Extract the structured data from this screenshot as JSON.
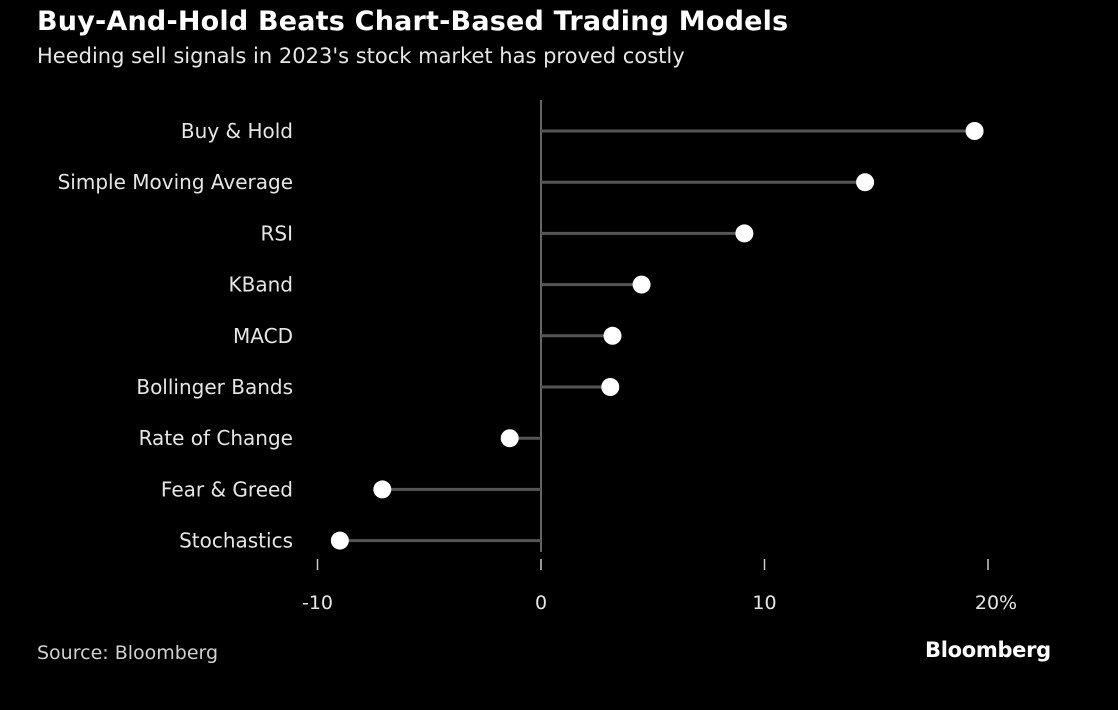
{
  "chart_data": {
    "type": "lollipop",
    "title": "Buy-And-Hold Beats Chart-Based Trading Models",
    "subtitle": "Heeding sell signals in 2023's stock market has proved costly",
    "categories": [
      "Buy & Hold",
      "Simple Moving Average",
      "RSI",
      "KBand",
      "MACD",
      "Bollinger Bands",
      "Rate of Change",
      "Fear & Greed",
      "Stochastics"
    ],
    "values": [
      19.4,
      14.5,
      9.1,
      4.5,
      3.2,
      3.1,
      -1.4,
      -7.1,
      -9.0
    ],
    "xlim": [
      -10,
      20
    ],
    "xticks": [
      -10,
      0,
      10,
      20
    ],
    "xtick_labels": [
      "-10",
      "0",
      "10",
      "20%"
    ],
    "xlabel": "",
    "ylabel": "",
    "grid": false
  },
  "footer": {
    "source": "Source: Bloomberg",
    "logo": "Bloomberg"
  },
  "colors": {
    "background": "#000000",
    "stem": "#555555",
    "dot": "#ffffff",
    "axis": "#888888"
  }
}
